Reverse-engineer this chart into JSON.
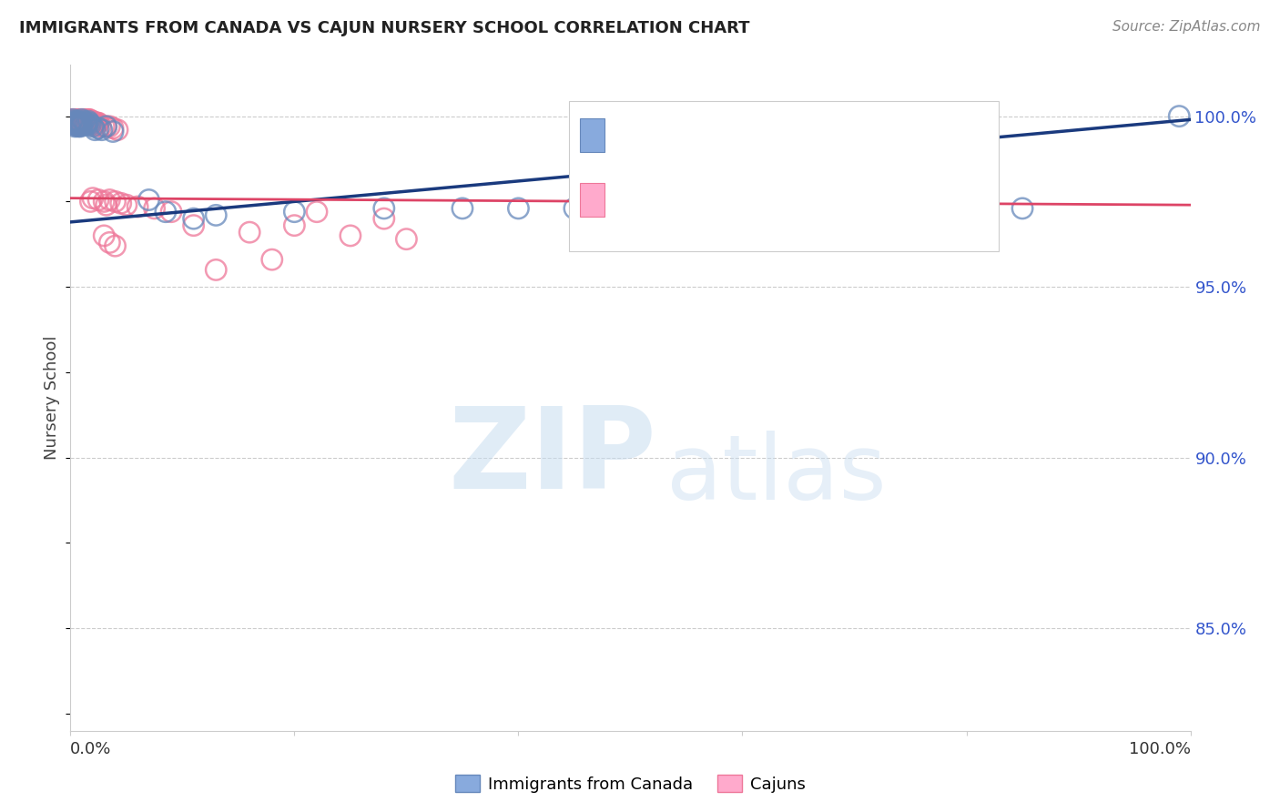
{
  "title": "IMMIGRANTS FROM CANADA VS CAJUN NURSERY SCHOOL CORRELATION CHART",
  "source": "Source: ZipAtlas.com",
  "ylabel": "Nursery School",
  "legend_label1": "Immigrants from Canada",
  "legend_label2": "Cajuns",
  "ytick_labels": [
    "100.0%",
    "95.0%",
    "90.0%",
    "85.0%"
  ],
  "ytick_positions": [
    1.0,
    0.95,
    0.9,
    0.85
  ],
  "watermark_part1": "ZIP",
  "watermark_part2": "atlas",
  "blue_color": "#88aadd",
  "blue_edge_color": "#6688bb",
  "pink_color": "#ffaacc",
  "pink_edge_color": "#ee7799",
  "blue_line_color": "#1a3a7e",
  "pink_line_color": "#dd4466",
  "grid_color": "#cccccc",
  "xlim": [
    0.0,
    1.0
  ],
  "ylim": [
    0.82,
    1.015
  ],
  "blue_scatter_x": [
    0.001,
    0.002,
    0.003,
    0.003,
    0.004,
    0.004,
    0.005,
    0.005,
    0.006,
    0.006,
    0.007,
    0.007,
    0.008,
    0.008,
    0.009,
    0.009,
    0.01,
    0.01,
    0.011,
    0.012,
    0.013,
    0.014,
    0.015,
    0.016,
    0.017,
    0.018,
    0.02,
    0.022,
    0.025,
    0.028,
    0.032,
    0.038,
    0.07,
    0.085,
    0.11,
    0.13,
    0.2,
    0.28,
    0.35,
    0.4,
    0.45,
    0.52,
    0.62,
    0.72,
    0.85,
    0.99
  ],
  "blue_scatter_y": [
    0.9985,
    0.999,
    0.998,
    0.9975,
    0.9985,
    0.997,
    0.998,
    0.9975,
    0.9985,
    0.9975,
    0.998,
    0.997,
    0.9985,
    0.9975,
    0.998,
    0.997,
    0.999,
    0.9975,
    0.9975,
    0.9985,
    0.9975,
    0.998,
    0.9975,
    0.9985,
    0.998,
    0.9975,
    0.997,
    0.996,
    0.9965,
    0.996,
    0.997,
    0.9955,
    0.9755,
    0.972,
    0.97,
    0.971,
    0.972,
    0.973,
    0.973,
    0.973,
    0.973,
    0.973,
    0.973,
    0.973,
    0.973,
    1.0
  ],
  "pink_scatter_x": [
    0.001,
    0.001,
    0.002,
    0.002,
    0.002,
    0.003,
    0.003,
    0.003,
    0.003,
    0.004,
    0.004,
    0.004,
    0.005,
    0.005,
    0.005,
    0.005,
    0.006,
    0.006,
    0.006,
    0.007,
    0.007,
    0.007,
    0.008,
    0.008,
    0.008,
    0.009,
    0.009,
    0.009,
    0.01,
    0.01,
    0.01,
    0.011,
    0.011,
    0.012,
    0.012,
    0.013,
    0.013,
    0.014,
    0.014,
    0.015,
    0.015,
    0.016,
    0.016,
    0.017,
    0.017,
    0.018,
    0.018,
    0.019,
    0.02,
    0.02,
    0.021,
    0.022,
    0.022,
    0.023,
    0.024,
    0.025,
    0.027,
    0.03,
    0.032,
    0.035,
    0.038,
    0.042,
    0.018,
    0.02,
    0.025,
    0.03,
    0.032,
    0.035,
    0.04,
    0.045,
    0.05,
    0.06,
    0.075,
    0.09,
    0.11,
    0.13,
    0.16,
    0.2,
    0.25,
    0.3,
    0.03,
    0.035,
    0.04,
    0.18,
    0.22,
    0.28
  ],
  "pink_scatter_y": [
    0.999,
    0.9985,
    0.999,
    0.9985,
    0.998,
    0.999,
    0.9985,
    0.998,
    0.9975,
    0.999,
    0.9985,
    0.998,
    0.999,
    0.9985,
    0.998,
    0.9975,
    0.999,
    0.9985,
    0.9975,
    0.999,
    0.9985,
    0.9975,
    0.999,
    0.9985,
    0.9975,
    0.999,
    0.9985,
    0.9975,
    0.999,
    0.9985,
    0.9975,
    0.999,
    0.9985,
    0.999,
    0.998,
    0.999,
    0.998,
    0.999,
    0.998,
    0.999,
    0.998,
    0.999,
    0.998,
    0.999,
    0.998,
    0.9985,
    0.9975,
    0.9985,
    0.9985,
    0.9975,
    0.998,
    0.998,
    0.9975,
    0.998,
    0.998,
    0.998,
    0.997,
    0.997,
    0.997,
    0.997,
    0.9965,
    0.996,
    0.975,
    0.976,
    0.9755,
    0.975,
    0.974,
    0.9755,
    0.975,
    0.9745,
    0.974,
    0.9735,
    0.973,
    0.972,
    0.968,
    0.955,
    0.966,
    0.968,
    0.965,
    0.964,
    0.965,
    0.963,
    0.962,
    0.958,
    0.972,
    0.97
  ],
  "blue_trend_start_y": 0.969,
  "blue_trend_end_y": 0.999,
  "pink_trend_start_y": 0.976,
  "pink_trend_end_y": 0.974
}
